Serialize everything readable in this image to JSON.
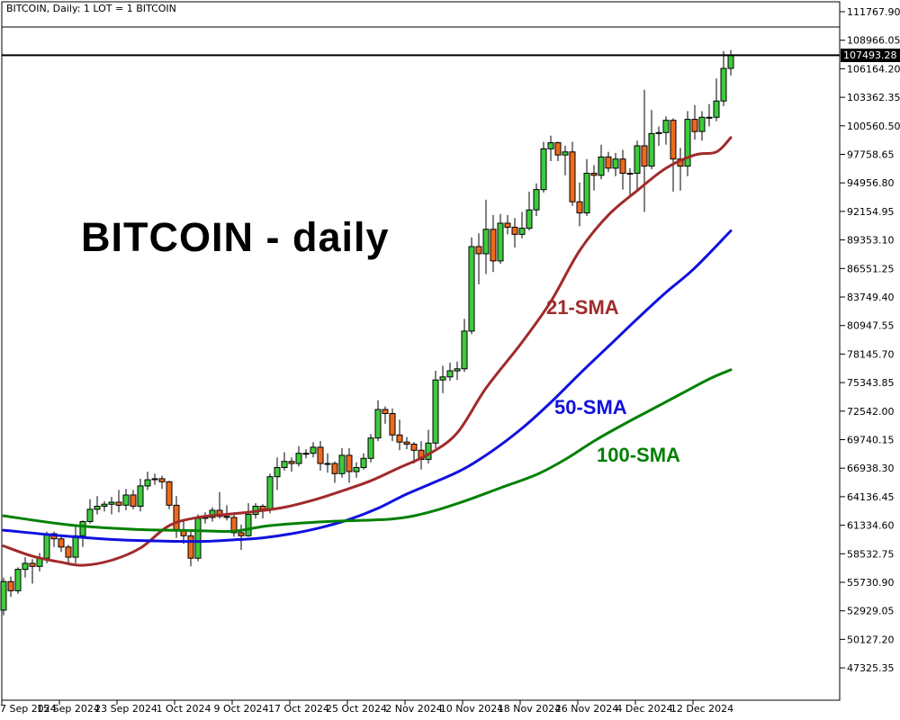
{
  "window": {
    "title": "BITCOIN, Daily:  1 LOT = 1 BITCOIN"
  },
  "watermark": {
    "text": "BITCOIN - daily"
  },
  "current_price": {
    "value": 107493.28,
    "label": "107493.28",
    "badge_bg": "#000000",
    "badge_fg": "#ffffff"
  },
  "colors": {
    "background": "#ffffff",
    "frame": "#000000",
    "candle_up": "#3dcb3d",
    "candle_down": "#ed6a1c",
    "candle_outline": "#000000",
    "wick": "#000000",
    "price_line": "#000000",
    "axis_text": "#000000"
  },
  "chart_data": {
    "type": "candlestick",
    "symbol": "BITCOIN",
    "timeframe": "Daily",
    "title": "BITCOIN - daily",
    "grid": false,
    "y_axis_side": "right",
    "y_ticks": [
      111767.9,
      108966.05,
      106164.2,
      103362.35,
      100560.5,
      97758.65,
      94956.8,
      92154.95,
      89353.1,
      86551.25,
      83749.4,
      80947.55,
      78145.7,
      75343.85,
      72542.0,
      69740.15,
      66938.3,
      64136.45,
      61334.6,
      58532.75,
      55730.9,
      52929.05,
      50127.2,
      47325.35
    ],
    "x_tick_labels": [
      "7 Sep 2024",
      "15 Sep 2024",
      "23 Sep 2024",
      "1 Oct 2024",
      "9 Oct 2024",
      "17 Oct 2024",
      "25 Oct 2024",
      "2 Nov 2024",
      "10 Nov 2024",
      "18 Nov 2024",
      "26 Nov 2024",
      "4 Dec 2024",
      "12 Dec 2024"
    ],
    "x_tick_every_candles": 8,
    "current_price": 107493.28,
    "candles_start_date": "7 Sep 2024",
    "ohlc": [
      [
        53000,
        56200,
        52500,
        55800
      ],
      [
        55800,
        56300,
        54300,
        54900
      ],
      [
        54900,
        57200,
        54600,
        57000
      ],
      [
        57000,
        58200,
        56200,
        57600
      ],
      [
        57600,
        58000,
        55600,
        57300
      ],
      [
        57300,
        58600,
        56800,
        58100
      ],
      [
        58100,
        60700,
        57600,
        60500
      ],
      [
        60500,
        60700,
        59200,
        60000
      ],
      [
        60000,
        60400,
        58700,
        59200
      ],
      [
        59200,
        59400,
        57500,
        58200
      ],
      [
        58200,
        61400,
        57600,
        60300
      ],
      [
        60300,
        61800,
        59200,
        61700
      ],
      [
        61700,
        63900,
        61500,
        62900
      ],
      [
        62900,
        64200,
        62400,
        63200
      ],
      [
        63200,
        63700,
        62700,
        63400
      ],
      [
        63400,
        64100,
        62400,
        63600
      ],
      [
        63600,
        64800,
        62600,
        63300
      ],
      [
        63300,
        64900,
        62800,
        64300
      ],
      [
        64300,
        64800,
        62900,
        63200
      ],
      [
        63200,
        65900,
        62700,
        65200
      ],
      [
        65200,
        66600,
        64800,
        65800
      ],
      [
        65800,
        66400,
        65300,
        65900
      ],
      [
        65900,
        66200,
        64900,
        65600
      ],
      [
        65600,
        65700,
        62900,
        63300
      ],
      [
        63300,
        64200,
        60100,
        60800
      ],
      [
        60800,
        61800,
        59500,
        60300
      ],
      [
        60300,
        60700,
        57300,
        58100
      ],
      [
        58100,
        62400,
        57800,
        62000
      ],
      [
        62000,
        62600,
        61500,
        62100
      ],
      [
        62100,
        63100,
        61700,
        62800
      ],
      [
        62800,
        64600,
        62000,
        62200
      ],
      [
        62200,
        63300,
        61800,
        62100
      ],
      [
        62100,
        62600,
        60200,
        60600
      ],
      [
        60600,
        61400,
        58900,
        60300
      ],
      [
        60300,
        63500,
        60200,
        62400
      ],
      [
        62400,
        63500,
        62000,
        63200
      ],
      [
        63200,
        63400,
        62000,
        62900
      ],
      [
        62900,
        66400,
        62500,
        66100
      ],
      [
        66100,
        68000,
        64800,
        67000
      ],
      [
        67000,
        68500,
        66700,
        67600
      ],
      [
        67600,
        68000,
        66600,
        67400
      ],
      [
        67400,
        69100,
        67100,
        68400
      ],
      [
        68400,
        68800,
        67900,
        68400
      ],
      [
        68400,
        69500,
        68000,
        69000
      ],
      [
        69000,
        69600,
        66700,
        67400
      ],
      [
        67400,
        68400,
        66500,
        67400
      ],
      [
        67400,
        67600,
        65500,
        66400
      ],
      [
        66400,
        68900,
        66000,
        68200
      ],
      [
        68200,
        68900,
        65500,
        66600
      ],
      [
        66600,
        67500,
        66000,
        67000
      ],
      [
        67000,
        68400,
        66800,
        67900
      ],
      [
        67900,
        70300,
        67500,
        69900
      ],
      [
        69900,
        73600,
        69600,
        72700
      ],
      [
        72700,
        73000,
        71300,
        72300
      ],
      [
        72300,
        72800,
        69600,
        70200
      ],
      [
        70200,
        71700,
        68700,
        69500
      ],
      [
        69500,
        70000,
        68800,
        69300
      ],
      [
        69300,
        69500,
        67400,
        68700
      ],
      [
        68700,
        69600,
        66800,
        67800
      ],
      [
        67800,
        70700,
        67400,
        69400
      ],
      [
        69400,
        76500,
        68900,
        75600
      ],
      [
        75600,
        77000,
        74300,
        75900
      ],
      [
        75900,
        77300,
        75500,
        76500
      ],
      [
        76500,
        77400,
        75600,
        76700
      ],
      [
        76700,
        81600,
        76400,
        80400
      ],
      [
        80400,
        89600,
        80100,
        88700
      ],
      [
        88700,
        90000,
        85000,
        88000
      ],
      [
        88000,
        93300,
        86000,
        90400
      ],
      [
        90400,
        91800,
        86200,
        87300
      ],
      [
        87300,
        91900,
        87000,
        91000
      ],
      [
        91000,
        91800,
        89900,
        90600
      ],
      [
        90600,
        91500,
        88600,
        89900
      ],
      [
        89900,
        92100,
        89500,
        90500
      ],
      [
        90500,
        94100,
        90300,
        92300
      ],
      [
        92300,
        94900,
        91700,
        94300
      ],
      [
        94300,
        99000,
        94000,
        98300
      ],
      [
        98300,
        99600,
        97100,
        98900
      ],
      [
        98900,
        99000,
        97100,
        97700
      ],
      [
        97700,
        98600,
        95700,
        98000
      ],
      [
        98000,
        99000,
        92700,
        93100
      ],
      [
        93100,
        95000,
        90700,
        92000
      ],
      [
        92000,
        97300,
        91700,
        95900
      ],
      [
        95900,
        96700,
        94200,
        95700
      ],
      [
        95700,
        98700,
        95300,
        97500
      ],
      [
        97500,
        98000,
        96000,
        96400
      ],
      [
        96400,
        97900,
        95600,
        97300
      ],
      [
        97300,
        98200,
        94300,
        95900
      ],
      [
        95900,
        96400,
        93500,
        95900
      ],
      [
        95900,
        99100,
        94100,
        98600
      ],
      [
        98600,
        104100,
        92100,
        96600
      ],
      [
        96600,
        102100,
        96300,
        99800
      ],
      [
        99800,
        100500,
        98600,
        99900
      ],
      [
        99900,
        101500,
        98700,
        101100
      ],
      [
        101100,
        101300,
        94100,
        97300
      ],
      [
        97300,
        98400,
        94200,
        96600
      ],
      [
        96600,
        102000,
        95600,
        101200
      ],
      [
        101200,
        102600,
        99200,
        100000
      ],
      [
        100000,
        102000,
        99100,
        101400
      ],
      [
        101400,
        102700,
        100500,
        101400
      ],
      [
        101400,
        105200,
        101000,
        103000
      ],
      [
        103000,
        107900,
        102500,
        106200
      ],
      [
        106200,
        108000,
        105500,
        107500
      ]
    ],
    "overlays": [
      {
        "id": "sma21",
        "label": "21-SMA",
        "color": "#a12a2a",
        "points": [
          [
            0,
            59300
          ],
          [
            4,
            58300
          ],
          [
            8,
            57700
          ],
          [
            11,
            57400
          ],
          [
            15,
            57900
          ],
          [
            19,
            59100
          ],
          [
            23,
            61300
          ],
          [
            27,
            62100
          ],
          [
            31,
            62400
          ],
          [
            35,
            62700
          ],
          [
            39,
            63100
          ],
          [
            43,
            63800
          ],
          [
            47,
            64700
          ],
          [
            51,
            65700
          ],
          [
            55,
            67000
          ],
          [
            59,
            68300
          ],
          [
            63,
            70400
          ],
          [
            67,
            74800
          ],
          [
            72,
            79300
          ],
          [
            76,
            83300
          ],
          [
            80,
            88300
          ],
          [
            84,
            91800
          ],
          [
            88,
            94200
          ],
          [
            92,
            96400
          ],
          [
            96,
            97700
          ],
          [
            99,
            98000
          ],
          [
            101,
            99400
          ]
        ]
      },
      {
        "id": "sma50",
        "label": "50-SMA",
        "color": "#1010e0",
        "points": [
          [
            0,
            60850
          ],
          [
            8,
            60300
          ],
          [
            16,
            59900
          ],
          [
            24,
            59750
          ],
          [
            28,
            59750
          ],
          [
            32,
            59900
          ],
          [
            36,
            60100
          ],
          [
            40,
            60500
          ],
          [
            44,
            61100
          ],
          [
            48,
            61900
          ],
          [
            52,
            63000
          ],
          [
            56,
            64400
          ],
          [
            60,
            65600
          ],
          [
            64,
            66900
          ],
          [
            68,
            68700
          ],
          [
            72,
            70850
          ],
          [
            76,
            73400
          ],
          [
            80,
            76200
          ],
          [
            84,
            78900
          ],
          [
            88,
            81600
          ],
          [
            92,
            84200
          ],
          [
            96,
            86600
          ],
          [
            101,
            90250
          ]
        ]
      },
      {
        "id": "sma100",
        "label": "100-SMA",
        "color": "#038003",
        "points": [
          [
            0,
            62260
          ],
          [
            9,
            61380
          ],
          [
            18,
            60940
          ],
          [
            27,
            60800
          ],
          [
            32,
            60750
          ],
          [
            37,
            61300
          ],
          [
            45,
            61700
          ],
          [
            54,
            61950
          ],
          [
            59,
            62600
          ],
          [
            64,
            63700
          ],
          [
            69,
            65000
          ],
          [
            74,
            66300
          ],
          [
            78,
            67800
          ],
          [
            82,
            69600
          ],
          [
            86,
            71200
          ],
          [
            90,
            72700
          ],
          [
            94,
            74200
          ],
          [
            98,
            75700
          ],
          [
            101,
            76600
          ]
        ]
      }
    ]
  }
}
